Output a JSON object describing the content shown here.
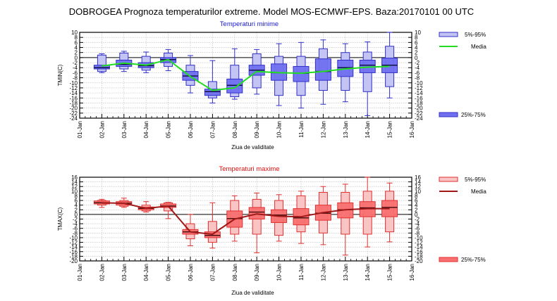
{
  "title": "DOBROGEA  Prognoza temperaturilor extreme.  Model MOS-ECMWF-EPS. Baza:20170101 00 UTC",
  "chart_data": [
    {
      "type": "boxplot",
      "title": "Temperaturi minime",
      "title_color": "#1a1ad0",
      "ylabel": "TMIN(C)",
      "xlabel": "Ziua de validitate",
      "ylim": [
        -24,
        10
      ],
      "yticks": [
        10,
        8,
        6,
        4,
        2,
        0,
        -2,
        -4,
        -6,
        -8,
        -10,
        -12,
        -14,
        -16,
        -18,
        -20,
        -22,
        -24
      ],
      "xtick_labels": [
        "01-Jan",
        "02-Jan",
        "03-Jan",
        "04-Jan",
        "05-Jan",
        "06-Jan",
        "07-Jan",
        "08-Jan",
        "09-Jan",
        "10-Jan",
        "11-Jan",
        "12-Jan",
        "13-Jan",
        "14-Jan",
        "15-Jan",
        "16-Jan"
      ],
      "grid": true,
      "zero_line": true,
      "colors": {
        "outer_fill": "#c4c4f4",
        "inner_fill": "#7070f0",
        "stroke": "#3030c8",
        "median": "#0a0a40",
        "mean_line": "#22dd22"
      },
      "legend": {
        "placement": "right",
        "items": [
          "5%-95%",
          "Media",
          "25%-75%"
        ]
      },
      "categories": [
        "02-Jan",
        "03-Jan",
        "04-Jan",
        "05-Jan",
        "06-Jan",
        "07-Jan",
        "08-Jan",
        "09-Jan",
        "10-Jan",
        "11-Jan",
        "12-Jan",
        "13-Jan",
        "14-Jan",
        "15-Jan"
      ],
      "boxes": [
        {
          "min": -6,
          "p5": -5.5,
          "p25": -4.5,
          "median": -4,
          "p75": -3,
          "p95": 1,
          "max": 1.5,
          "mean": -3.3
        },
        {
          "min": -5.5,
          "p5": -4.5,
          "p25": -3.5,
          "median": -2.7,
          "p75": -1,
          "p95": 1.8,
          "max": 2.5,
          "mean": -2.2
        },
        {
          "min": -6,
          "p5": -5,
          "p25": -4,
          "median": -3.2,
          "p75": -2,
          "p95": 0.5,
          "max": 2.2,
          "mean": -3
        },
        {
          "min": -5.2,
          "p5": -3.5,
          "p25": -2,
          "median": -0.8,
          "p75": 0,
          "p95": 1.8,
          "max": 3.2,
          "mean": -0.8
        },
        {
          "min": -14,
          "p5": -11,
          "p25": -9,
          "median": -7.3,
          "p75": -5.5,
          "p95": -3,
          "max": 0.8,
          "mean": -7.5
        },
        {
          "min": -18,
          "p5": -16,
          "p25": -15,
          "median": -13.5,
          "p75": -12.5,
          "p95": -9.5,
          "max": -1.2,
          "mean": -13
        },
        {
          "min": -16.5,
          "p5": -15.5,
          "p25": -14,
          "median": -11,
          "p75": -8.5,
          "p95": -3,
          "max": 3.5,
          "mean": -12
        },
        {
          "min": -14.5,
          "p5": -12,
          "p25": -7,
          "median": -5,
          "p75": -3,
          "p95": 1.5,
          "max": 3.2,
          "mean": -5.5
        },
        {
          "min": -19,
          "p5": -15,
          "p25": -9,
          "median": -6,
          "p75": -2.5,
          "p95": 0.5,
          "max": 5.5,
          "mean": -6
        },
        {
          "min": -20,
          "p5": -15,
          "p25": -9.5,
          "median": -6.2,
          "p75": -3.5,
          "p95": 0.5,
          "max": 6,
          "mean": -6.2
        },
        {
          "min": -18.5,
          "p5": -13,
          "p25": -9,
          "median": -5.5,
          "p75": -0.5,
          "p95": 3.5,
          "max": 7,
          "mean": -5.5
        },
        {
          "min": -17.5,
          "p5": -13,
          "p25": -7.5,
          "median": -4,
          "p75": -1,
          "p95": 2,
          "max": 5.5,
          "mean": -4.5
        },
        {
          "min": -23,
          "p5": -13.5,
          "p25": -6,
          "median": -3,
          "p75": -1,
          "p95": 2.2,
          "max": 6.2,
          "mean": -3.8
        },
        {
          "min": -16,
          "p5": -11.5,
          "p25": -6,
          "median": -3,
          "p75": -0.2,
          "p95": 4.5,
          "max": 10,
          "mean": -3.5
        }
      ]
    },
    {
      "type": "boxplot",
      "title": "Temperaturi maxime",
      "title_color": "#e01010",
      "ylabel": "TMAX(C)",
      "xlabel": "Ziua de validitate",
      "ylim": [
        -20,
        16
      ],
      "yticks": [
        16,
        14,
        12,
        10,
        8,
        6,
        4,
        2,
        0,
        -2,
        -4,
        -6,
        -8,
        -10,
        -12,
        -14,
        -16,
        -18,
        -20
      ],
      "xtick_labels": [
        "01-Jan",
        "02-Jan",
        "03-Jan",
        "04-Jan",
        "05-Jan",
        "06-Jan",
        "07-Jan",
        "08-Jan",
        "09-Jan",
        "10-Jan",
        "11-Jan",
        "12-Jan",
        "13-Jan",
        "14-Jan",
        "15-Jan",
        "16-Jan"
      ],
      "grid": true,
      "zero_line": true,
      "colors": {
        "outer_fill": "#f8c4c4",
        "inner_fill": "#f87070",
        "stroke": "#e03030",
        "median": "#400a0a",
        "mean_line": "#a01818"
      },
      "legend": {
        "placement": "right",
        "items": [
          "5%-95%",
          "Media",
          "25%-75%"
        ]
      },
      "categories": [
        "02-Jan",
        "03-Jan",
        "04-Jan",
        "05-Jan",
        "06-Jan",
        "07-Jan",
        "08-Jan",
        "09-Jan",
        "10-Jan",
        "11-Jan",
        "12-Jan",
        "13-Jan",
        "14-Jan",
        "15-Jan"
      ],
      "boxes": [
        {
          "min": 3,
          "p5": 4,
          "p25": 4.5,
          "median": 5,
          "p75": 5.8,
          "p95": 6,
          "max": 6.5,
          "mean": 5
        },
        {
          "min": 3,
          "p5": 3.5,
          "p25": 4,
          "median": 4.8,
          "p75": 5.5,
          "p95": 6,
          "max": 7,
          "mean": 4.8
        },
        {
          "min": 1,
          "p5": 1.5,
          "p25": 2,
          "median": 2.6,
          "p75": 3.2,
          "p95": 4,
          "max": 5.5,
          "mean": 2.6
        },
        {
          "min": -1.8,
          "p5": 1.5,
          "p25": 3,
          "median": 3.6,
          "p75": 4.5,
          "p95": 5,
          "max": 5.2,
          "mean": 3.6
        },
        {
          "min": -13.5,
          "p5": -10.5,
          "p25": -8.5,
          "median": -7.5,
          "p75": -6.5,
          "p95": -4,
          "max": 0,
          "mean": -7.5
        },
        {
          "min": -14.5,
          "p5": -12,
          "p25": -10,
          "median": -9,
          "p75": -7.5,
          "p95": -3,
          "max": 5,
          "mean": -8.5
        },
        {
          "min": -11.5,
          "p5": -8.5,
          "p25": -5.5,
          "median": -1.8,
          "p75": 1.5,
          "p95": 6,
          "max": 8,
          "mean": -2
        },
        {
          "min": -16.5,
          "p5": -8.5,
          "p25": -2,
          "median": 1,
          "p75": 3,
          "p95": 6.5,
          "max": 9.2,
          "mean": 0.2
        },
        {
          "min": -11.5,
          "p5": -9,
          "p25": -3.5,
          "median": -0.3,
          "p75": 2,
          "p95": 6,
          "max": 8.5,
          "mean": -0.8
        },
        {
          "min": -12.5,
          "p5": -7.5,
          "p25": -4.5,
          "median": -1.5,
          "p75": 2.5,
          "p95": 8,
          "max": 10,
          "mean": -1
        },
        {
          "min": -13,
          "p5": -8,
          "p25": -2.5,
          "median": 0.5,
          "p75": 4,
          "p95": 9.5,
          "max": 12,
          "mean": 0.8
        },
        {
          "min": -17.5,
          "p5": -8.5,
          "p25": -1.5,
          "median": 2,
          "p75": 5,
          "p95": 9.5,
          "max": 13,
          "mean": 2
        },
        {
          "min": -14,
          "p5": -8.5,
          "p25": -1,
          "median": 2.8,
          "p75": 5.5,
          "p95": 10,
          "max": 16,
          "mean": 2.5
        },
        {
          "min": -11.8,
          "p5": -7.5,
          "p25": -1,
          "median": 3,
          "p75": 6,
          "p95": 10,
          "max": 13.5,
          "mean": 2.5
        }
      ]
    }
  ]
}
